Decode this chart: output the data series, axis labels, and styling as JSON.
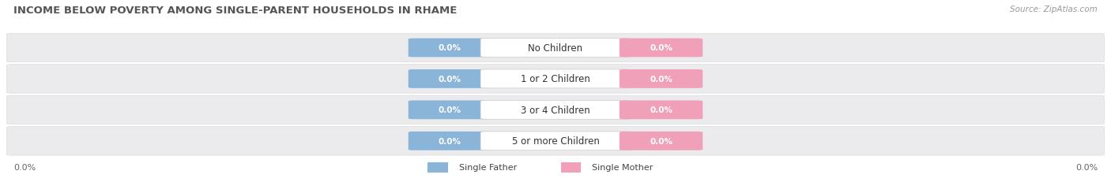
{
  "title": "INCOME BELOW POVERTY AMONG SINGLE-PARENT HOUSEHOLDS IN RHAME",
  "source": "Source: ZipAtlas.com",
  "categories": [
    "No Children",
    "1 or 2 Children",
    "3 or 4 Children",
    "5 or more Children"
  ],
  "single_father_values": [
    0.0,
    0.0,
    0.0,
    0.0
  ],
  "single_mother_values": [
    0.0,
    0.0,
    0.0,
    0.0
  ],
  "father_color": "#8ab4d8",
  "mother_color": "#f0a0b8",
  "row_bg_color": "#ebebed",
  "axis_label_left": "0.0%",
  "axis_label_right": "0.0%",
  "title_fontsize": 9.5,
  "source_fontsize": 7.5,
  "value_fontsize": 7.5,
  "cat_fontsize": 8.5,
  "legend_fontsize": 8,
  "legend_father": "Single Father",
  "legend_mother": "Single Mother",
  "background_color": "#ffffff"
}
